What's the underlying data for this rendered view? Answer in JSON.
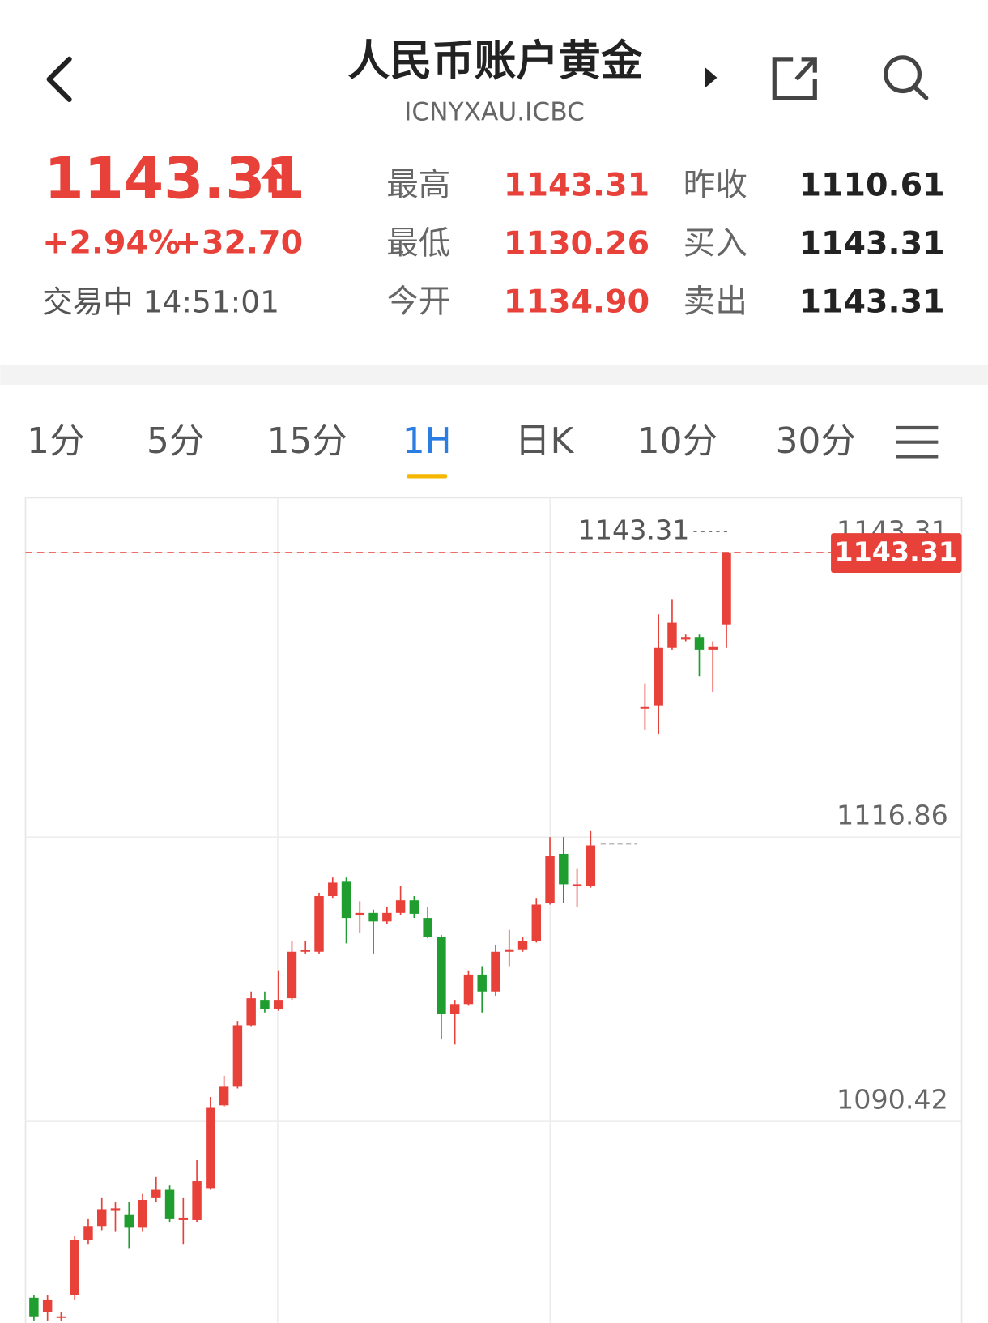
{
  "header": {
    "title": "人民币账户黄金",
    "code": "ICNYXAU.ICBC"
  },
  "quote": {
    "price": "1143.31",
    "change_pct": "+2.94%",
    "change": "+32.70",
    "status": "交易中 14:51:01",
    "stats": [
      [
        {
          "label": "最高",
          "value": "1143.31"
        },
        {
          "label": "昨收",
          "value": "1110.61"
        }
      ],
      [
        {
          "label": "最低",
          "value": "1130.26"
        },
        {
          "label": "买入",
          "value": "1143.31"
        }
      ],
      [
        {
          "label": "今开",
          "value": "1134.90"
        },
        {
          "label": "卖出",
          "value": "1143.31"
        }
      ]
    ]
  },
  "tabs": {
    "items": [
      "1分",
      "5分",
      "15分",
      "1H",
      "日K",
      "10分",
      "30分"
    ],
    "active": 3
  },
  "chart_data": {
    "type": "candlestick",
    "open": [
      1074.02,
      1072.69,
      1072.14,
      1074.26,
      1079.36,
      1080.69,
      1082.1,
      1081.71,
      1080.53,
      1083.28,
      1084.06,
      1081.24,
      1081.24,
      1084.22,
      1091.91,
      1093.64,
      1099.36,
      1101.72,
      1100.85,
      1101.87,
      1106.19,
      1106.19,
      1111.37,
      1112.7,
      1109.56,
      1109.8,
      1109.01,
      1109.8,
      1110.98,
      1109.33,
      1107.6,
      1100.38,
      1101.33,
      1104.07,
      1102.5,
      1106.19,
      1106.42,
      1107.21,
      1110.74,
      1115.29,
      1112.31,
      1112.31,
      null,
      null,
      null,
      1128.79,
      1129.1,
      1134.44,
      1135.22,
      1135.46,
      1134.28,
      1136.63
    ],
    "high": [
      1074.26,
      1074.26,
      1072.69,
      1079.75,
      1081.32,
      1083.28,
      1082.89,
      1082.89,
      1083.67,
      1085.24,
      1084.46,
      1083.28,
      1086.81,
      1092.69,
      1094.66,
      1099.76,
      1102.5,
      1102.5,
      1104.46,
      1107.21,
      1107.21,
      1111.68,
      1113.09,
      1113.09,
      1110.9,
      1110.11,
      1110.35,
      1112.31,
      1111.37,
      1110.35,
      1107.76,
      1101.72,
      1104.46,
      1104.86,
      1106.82,
      1108.23,
      1107.6,
      1111.13,
      1116.86,
      1116.86,
      1113.88,
      1117.41,
      null,
      null,
      null,
      1131.14,
      1137.57,
      1138.99,
      1135.69,
      1135.69,
      1135.06,
      1143.31
    ],
    "low": [
      1071.9,
      1071.9,
      1071.9,
      1073.86,
      1078.96,
      1080.3,
      1080.14,
      1078.57,
      1080.14,
      1082.89,
      1081.08,
      1078.96,
      1081.08,
      1084.06,
      1091.75,
      1093.48,
      1099.21,
      1100.54,
      1100.7,
      1101.72,
      1106.03,
      1106.03,
      1111.13,
      1106.97,
      1107.99,
      1106.03,
      1108.78,
      1109.56,
      1109.33,
      1107.44,
      1098.03,
      1097.56,
      1101.17,
      1100.54,
      1102.11,
      1104.86,
      1106.19,
      1107.05,
      1110.58,
      1110.74,
      1110.35,
      1112.15,
      null,
      null,
      null,
      1126.82,
      1126.43,
      1134.28,
      1135.06,
      1131.77,
      1130.36,
      1134.44
    ],
    "close": [
      1072.29,
      1073.86,
      1072.29,
      1079.36,
      1080.69,
      1082.26,
      1082.34,
      1080.53,
      1083.12,
      1084.06,
      1081.32,
      1081.47,
      1084.85,
      1091.67,
      1093.64,
      1099.36,
      1101.87,
      1100.85,
      1101.72,
      1106.19,
      1106.35,
      1111.37,
      1112.62,
      1109.33,
      1109.8,
      1109.01,
      1109.8,
      1110.98,
      1109.72,
      1107.6,
      1100.38,
      1101.33,
      1104.07,
      1102.5,
      1106.19,
      1106.42,
      1107.21,
      1110.58,
      1115.06,
      1112.47,
      1112.47,
      1116.08,
      null,
      null,
      null,
      1128.94,
      1134.44,
      1136.79,
      1135.46,
      1134.28,
      1134.59,
      1143.31
    ],
    "ylim": [
      1071.67,
      1148.4
    ],
    "yticks": [
      1090.42,
      1116.86,
      1143.31
    ],
    "grid": true,
    "up_color": "#e8413a",
    "down_color": "#1f9e2f",
    "max_marker": 1143.31,
    "last_price": 1143.31
  }
}
